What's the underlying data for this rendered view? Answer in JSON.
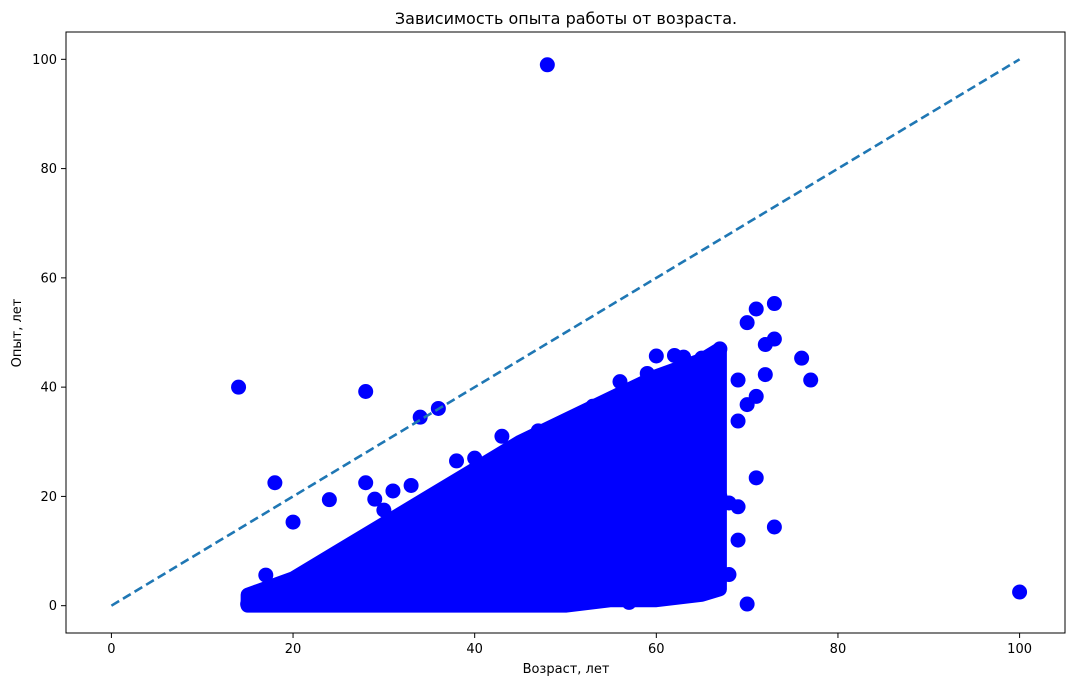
{
  "chart_data": {
    "type": "scatter",
    "title": "Зависимость опыта работы от возраста.",
    "xlabel": "Возраст, лет",
    "ylabel": "Опыт, лет",
    "xlim": [
      -5,
      105
    ],
    "ylim": [
      -5,
      105
    ],
    "xticks": [
      0,
      20,
      40,
      60,
      80,
      100
    ],
    "yticks": [
      0,
      20,
      40,
      60,
      80,
      100
    ],
    "xtick_labels": [
      "0",
      "20",
      "40",
      "60",
      "80",
      "100"
    ],
    "ytick_labels": [
      "0",
      "20",
      "40",
      "60",
      "80",
      "100"
    ],
    "grid": false,
    "legend": "none",
    "colors": {
      "points": "#0000ff",
      "reference_line": "#1f77b4"
    },
    "reference_line": {
      "style": "dashed",
      "x": [
        0,
        100
      ],
      "y": [
        0,
        100
      ]
    },
    "main_cluster_envelope": {
      "description_values": "dense region of points, age vs experience",
      "age": [
        15,
        20,
        25,
        30,
        35,
        40,
        45,
        50,
        55,
        60,
        65,
        67
      ],
      "experience_min": [
        0,
        0,
        0,
        0,
        0,
        0,
        0,
        0,
        1,
        1,
        2,
        3
      ],
      "experience_max": [
        2,
        5,
        10,
        15,
        20,
        25,
        30,
        34,
        38,
        42,
        45,
        47
      ]
    },
    "points": [
      {
        "x": 14,
        "y": 40
      },
      {
        "x": 18,
        "y": 22.5
      },
      {
        "x": 20,
        "y": 15.3
      },
      {
        "x": 24,
        "y": 19.4
      },
      {
        "x": 28,
        "y": 39.2
      },
      {
        "x": 34,
        "y": 34.5
      },
      {
        "x": 36,
        "y": 36.1
      },
      {
        "x": 48,
        "y": 99
      },
      {
        "x": 100,
        "y": 2.5
      },
      {
        "x": 70,
        "y": 0.3
      },
      {
        "x": 73,
        "y": 55.3
      },
      {
        "x": 71,
        "y": 54.3
      },
      {
        "x": 70,
        "y": 51.8
      },
      {
        "x": 73,
        "y": 48.8
      },
      {
        "x": 72,
        "y": 47.8
      },
      {
        "x": 76,
        "y": 45.3
      },
      {
        "x": 77,
        "y": 41.3
      },
      {
        "x": 72,
        "y": 42.3
      },
      {
        "x": 69,
        "y": 41.3
      },
      {
        "x": 71,
        "y": 38.3
      },
      {
        "x": 70,
        "y": 36.8
      },
      {
        "x": 69,
        "y": 33.8
      },
      {
        "x": 71,
        "y": 23.4
      },
      {
        "x": 73,
        "y": 14.4
      },
      {
        "x": 68,
        "y": 18.8
      },
      {
        "x": 69,
        "y": 18.1
      },
      {
        "x": 69,
        "y": 12.0
      },
      {
        "x": 68,
        "y": 5.7
      },
      {
        "x": 66,
        "y": 5.0
      },
      {
        "x": 65,
        "y": 4.0
      },
      {
        "x": 60,
        "y": 3.8
      },
      {
        "x": 60,
        "y": 1.2
      },
      {
        "x": 57,
        "y": 0.6
      },
      {
        "x": 57,
        "y": 2.0
      },
      {
        "x": 62,
        "y": 45.8
      },
      {
        "x": 63,
        "y": 45.5
      },
      {
        "x": 65,
        "y": 45.3
      },
      {
        "x": 67,
        "y": 47.0
      },
      {
        "x": 60,
        "y": 45.7
      },
      {
        "x": 15,
        "y": 0.3
      },
      {
        "x": 16,
        "y": 2.5
      },
      {
        "x": 17,
        "y": 5.6
      },
      {
        "x": 62,
        "y": 31.5
      },
      {
        "x": 64,
        "y": 28.5
      },
      {
        "x": 63,
        "y": 25.0
      },
      {
        "x": 66,
        "y": 22.5
      },
      {
        "x": 67,
        "y": 20.0
      },
      {
        "x": 64,
        "y": 16.0
      },
      {
        "x": 65,
        "y": 12.0
      },
      {
        "x": 62,
        "y": 8.0
      },
      {
        "x": 66,
        "y": 14.0
      },
      {
        "x": 28,
        "y": 22.5
      },
      {
        "x": 29,
        "y": 19.5
      },
      {
        "x": 31,
        "y": 21.0
      },
      {
        "x": 30,
        "y": 17.5
      },
      {
        "x": 33,
        "y": 22.0
      },
      {
        "x": 38,
        "y": 26.5
      },
      {
        "x": 40,
        "y": 27.0
      },
      {
        "x": 43,
        "y": 31.0
      },
      {
        "x": 47,
        "y": 32.0
      },
      {
        "x": 50,
        "y": 33.5
      },
      {
        "x": 53,
        "y": 36.5
      },
      {
        "x": 56,
        "y": 41.0
      },
      {
        "x": 58,
        "y": 40.0
      },
      {
        "x": 59,
        "y": 42.5
      }
    ]
  }
}
